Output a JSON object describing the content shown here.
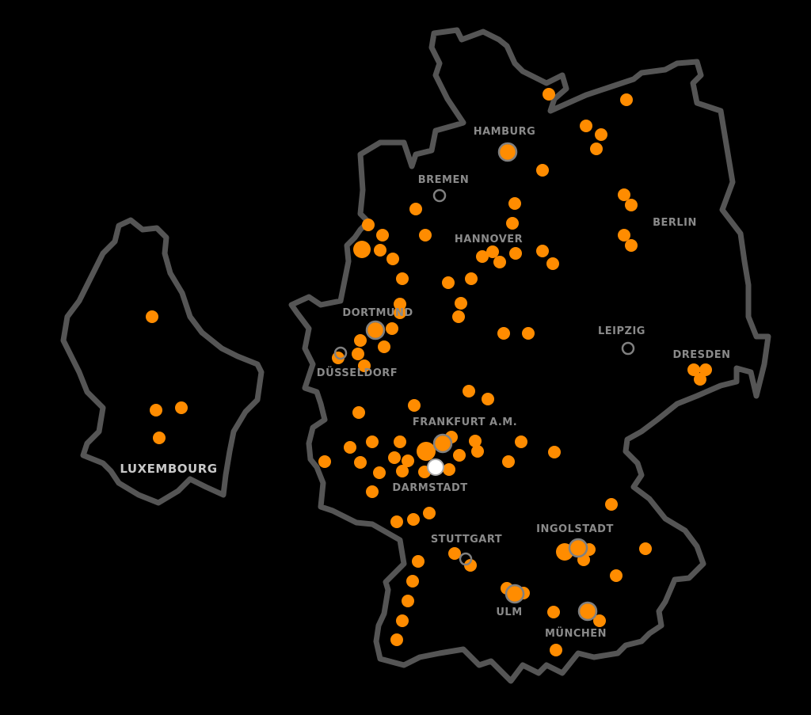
{
  "map": {
    "colors": {
      "background": "#000000",
      "border": "#555555",
      "point": "#ff8c00",
      "city_ring": "#808080",
      "selected_point": "#ffffff",
      "label": "#8a8a8a"
    },
    "regions": [
      "Germany",
      "Luxembourg"
    ],
    "cities": [
      {
        "id": "hamburg",
        "label": "HAMBURG"
      },
      {
        "id": "bremen",
        "label": "BREMEN"
      },
      {
        "id": "hannover",
        "label": "HANNOVER"
      },
      {
        "id": "berlin",
        "label": "BERLIN"
      },
      {
        "id": "dortmund",
        "label": "DORTMUND"
      },
      {
        "id": "duesseldorf",
        "label": "DÜSSELDORF"
      },
      {
        "id": "leipzig",
        "label": "LEIPZIG"
      },
      {
        "id": "dresden",
        "label": "DRESDEN"
      },
      {
        "id": "frankfurt",
        "label": "FRANKFURT A.M."
      },
      {
        "id": "darmstadt",
        "label": "DARMSTADT"
      },
      {
        "id": "stuttgart",
        "label": "STUTTGART"
      },
      {
        "id": "ingolstadt",
        "label": "INGOLSTADT"
      },
      {
        "id": "ulm",
        "label": "ULM"
      },
      {
        "id": "muenchen",
        "label": "MÜNCHEN"
      },
      {
        "id": "luxembourg",
        "label": "LUXEMBOURG"
      }
    ]
  }
}
